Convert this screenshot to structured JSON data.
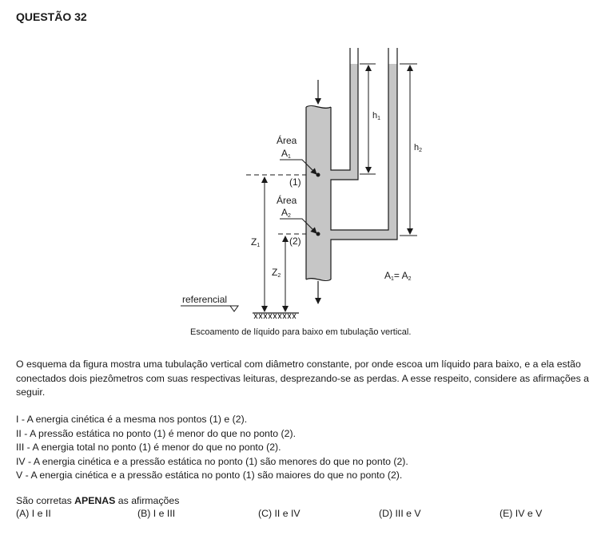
{
  "question_title": "QUESTÃO 32",
  "figure": {
    "label_h1": "h",
    "label_h1_sub": "1",
    "label_h2": "h",
    "label_h2_sub": "2",
    "label_area1": "Área",
    "label_A1": "A",
    "label_A1_sub": "1",
    "label_point1": "(1)",
    "label_area2": "Área",
    "label_A2": "A",
    "label_A2_sub": "2",
    "label_point2": "(2)",
    "label_Z1": "Z",
    "label_Z1_sub": "1",
    "label_Z2": "Z",
    "label_Z2_sub": "2",
    "label_equality": "A",
    "label_equality_sub1": "1",
    "label_equality_mid": "= A",
    "label_equality_sub2": "2",
    "label_referencial": "referencial",
    "caption": "Escoamento de líquido para baixo em tubulação vertical."
  },
  "paragraph": "O esquema da figura mostra uma tubulação vertical com diâmetro constante, por onde escoa um líquido para baixo, e a ela estão conectados dois piezômetros com suas respectivas leituras, desprezando-se as perdas. A esse respeito, considere as afirmações a seguir.",
  "statements": [
    "I  -  A energia cinética é a mesma nos pontos (1) e (2).",
    "II  -  A pressão estática no ponto (1) é menor do que no ponto (2).",
    "III -  A energia total no ponto (1) é menor do que no ponto (2).",
    "IV -  A energia cinética e a pressão estática no ponto (1) são menores do que no ponto (2).",
    "V  -  A energia cinética e a pressão estática no ponto (1) são maiores do que no ponto (2)."
  ],
  "question_prefix": "São corretas ",
  "question_bold": "APENAS",
  "question_suffix": " as afirmações",
  "options": [
    "(A)  I e II",
    "(B)  I e III",
    "(C)  II e IV",
    "(D)  III e V",
    "(E)  IV e V"
  ]
}
